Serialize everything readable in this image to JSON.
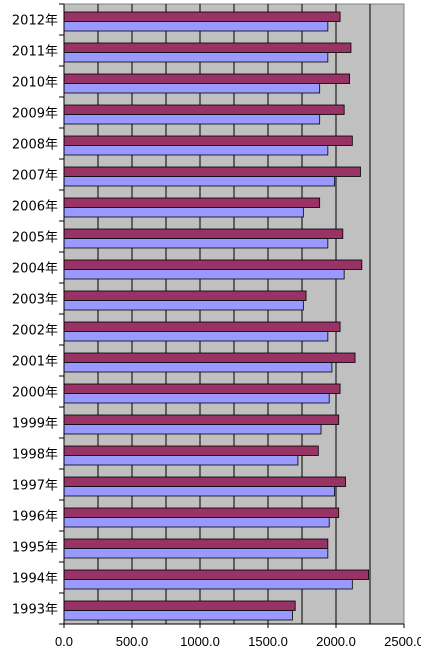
{
  "chart_data": {
    "type": "bar",
    "orientation": "horizontal",
    "categories": [
      "2012年",
      "2011年",
      "2010年",
      "2009年",
      "2008年",
      "2007年",
      "2006年",
      "2005年",
      "2004年",
      "2003年",
      "2002年",
      "2001年",
      "2000年",
      "1999年",
      "1998年",
      "1997年",
      "1996年",
      "1995年",
      "1994年",
      "1993年"
    ],
    "series": [
      {
        "values": [
          2030,
          2110,
          2100,
          2060,
          2120,
          2180,
          1880,
          2050,
          2190,
          1780,
          2030,
          2140,
          2030,
          2020,
          1870,
          2070,
          2020,
          1940,
          2240,
          1700
        ]
      },
      {
        "values": [
          1940,
          1940,
          1880,
          1880,
          1940,
          1990,
          1760,
          1940,
          2060,
          1760,
          1940,
          1970,
          1950,
          1890,
          1720,
          1990,
          1950,
          1940,
          2120,
          1680
        ]
      }
    ],
    "series_colors": [
      "#993366",
      "#9999ff"
    ],
    "xlim": [
      0,
      2500
    ],
    "xticks": [
      "0.0",
      "500.0",
      "1000.0",
      "1500.0",
      "2000.0",
      "2500.0"
    ],
    "grid": true,
    "plot_background": "#c0c0c0"
  }
}
